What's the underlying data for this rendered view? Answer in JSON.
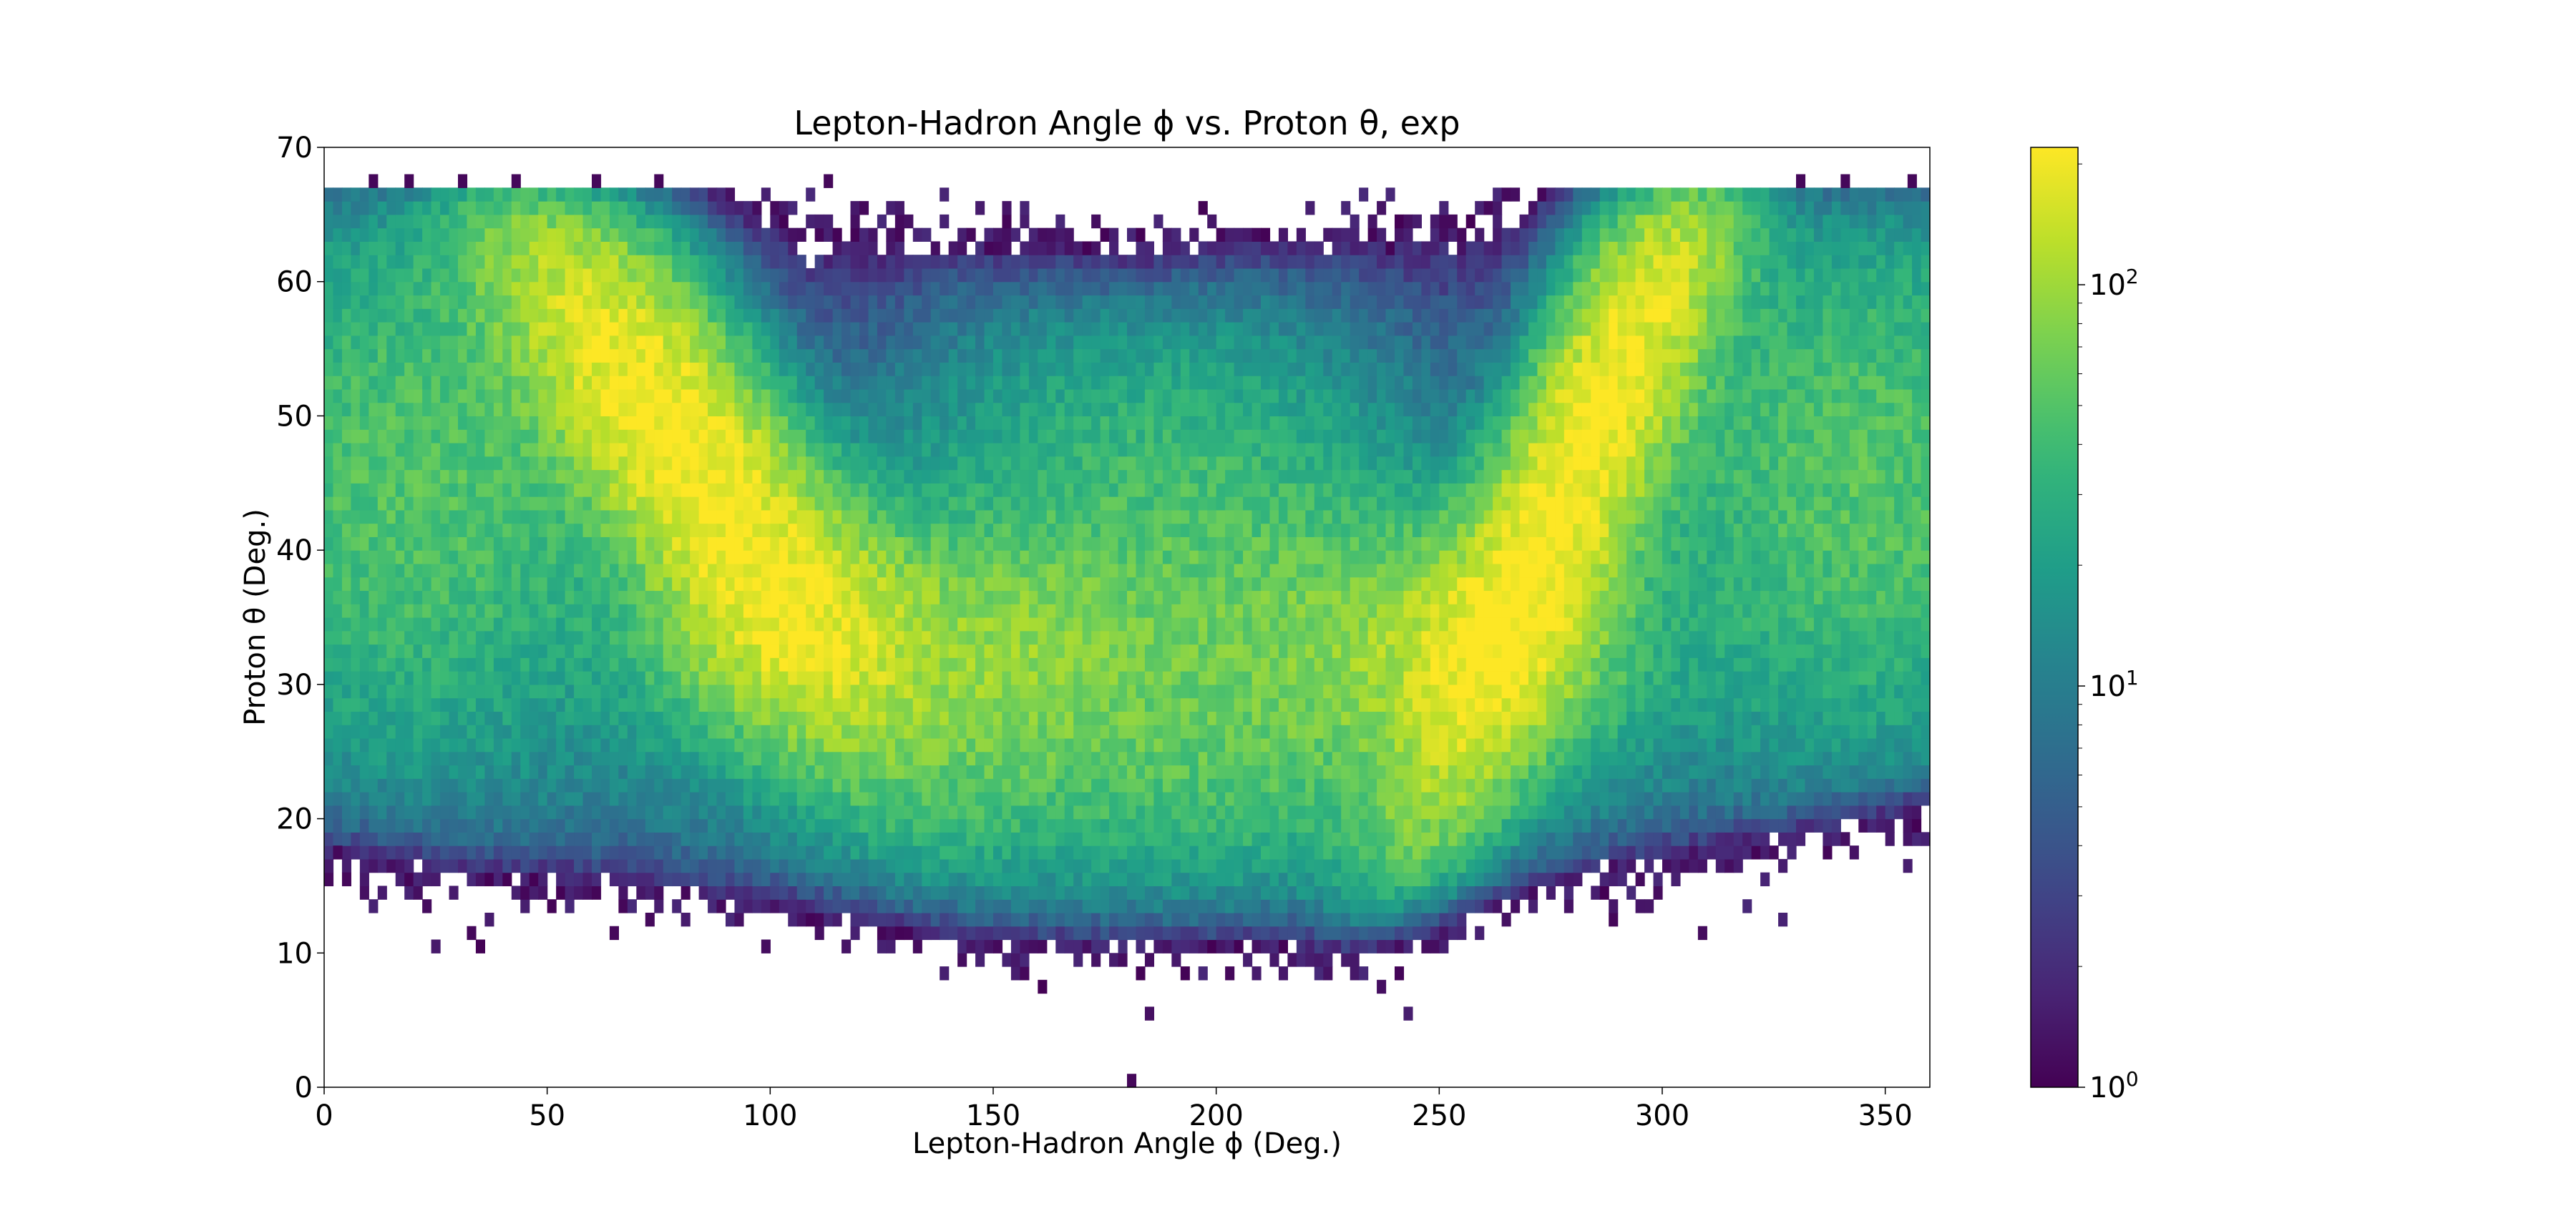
{
  "chart_data": {
    "type": "heatmap",
    "title": "Lepton-Hadron Angle ϕ vs. Proton θ, exp",
    "xlabel": "Lepton-Hadron Angle ϕ (Deg.)",
    "ylabel": "Proton θ (Deg.)",
    "xlim": [
      0,
      360
    ],
    "ylim": [
      0,
      70
    ],
    "x_ticks": [
      0,
      50,
      100,
      150,
      200,
      250,
      300,
      350
    ],
    "y_ticks": [
      0,
      10,
      20,
      30,
      40,
      50,
      60,
      70
    ],
    "colorscale": "viridis",
    "color_scale_type": "log",
    "color_range": [
      1,
      220
    ],
    "colorbar_ticks": [
      {
        "base": "10",
        "exp": "0",
        "value": 1
      },
      {
        "base": "10",
        "exp": "1",
        "value": 10
      },
      {
        "base": "10",
        "exp": "2",
        "value": 100
      }
    ],
    "bins": {
      "nx": 180,
      "ny": 70,
      "x_bin_width": 2,
      "y_bin_width": 1
    },
    "distribution_peaks": [
      {
        "phi": 80,
        "theta": 47,
        "counts": 210
      },
      {
        "phi": 280,
        "theta": 47,
        "counts": 210
      },
      {
        "phi": 110,
        "theta": 34,
        "counts": 110
      },
      {
        "phi": 255,
        "theta": 34,
        "counts": 110
      }
    ],
    "theta_max_edge": 67,
    "grid": false
  }
}
